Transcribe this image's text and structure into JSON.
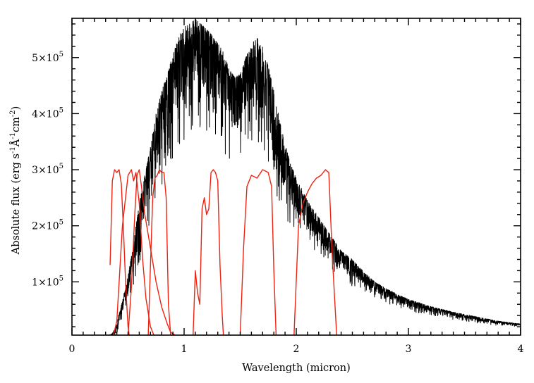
{
  "chart_data": {
    "type": "line",
    "xlabel": "Wavelength (micron)",
    "ylabel_parts": {
      "pre": "Absolute flux (erg s",
      "e1": "-1",
      "mid1": "Å",
      "e2": "-1",
      "mid2": "cm",
      "e3": "-2",
      "post": ")"
    },
    "xlim": [
      0,
      4
    ],
    "ylim": [
      5000,
      570000
    ],
    "x_ticks": [
      {
        "value": 0,
        "label": "0"
      },
      {
        "value": 1,
        "label": "1"
      },
      {
        "value": 2,
        "label": "2"
      },
      {
        "value": 3,
        "label": "3"
      },
      {
        "value": 4,
        "label": "4"
      }
    ],
    "y_ticks": [
      {
        "value": 100000,
        "mant": "1×10",
        "exp": "5"
      },
      {
        "value": 200000,
        "mant": "2×10",
        "exp": "5"
      },
      {
        "value": 300000,
        "mant": "3×10",
        "exp": "5"
      },
      {
        "value": 400000,
        "mant": "4×10",
        "exp": "5"
      },
      {
        "value": 500000,
        "mant": "5×10",
        "exp": "5"
      }
    ],
    "x_minor_step": 0.1,
    "y_minor_step": 20000,
    "spectrum_color": "#000000",
    "filter_color": "#ee2211",
    "spectrum_envelope": {
      "x": [
        0.33,
        0.36,
        0.38,
        0.4,
        0.43,
        0.46,
        0.5,
        0.55,
        0.6,
        0.65,
        0.7,
        0.75,
        0.8,
        0.85,
        0.9,
        0.95,
        1.0,
        1.05,
        1.1,
        1.15,
        1.2,
        1.25,
        1.3,
        1.35,
        1.4,
        1.45,
        1.5,
        1.55,
        1.6,
        1.65,
        1.7,
        1.75,
        1.8,
        1.85,
        1.9,
        1.95,
        2.0,
        2.05,
        2.1,
        2.15,
        2.2,
        2.25,
        2.3,
        2.35,
        2.4,
        2.5,
        2.6,
        2.7,
        2.8,
        2.9,
        3.0,
        3.2,
        3.4,
        3.6,
        3.8,
        4.0
      ],
      "upper": [
        5000,
        8000,
        15000,
        30000,
        50000,
        75000,
        110000,
        170000,
        240000,
        290000,
        340000,
        400000,
        440000,
        470000,
        505000,
        535000,
        555000,
        560000,
        570000,
        560000,
        550000,
        540000,
        525000,
        510000,
        480000,
        465000,
        470000,
        500000,
        525000,
        535000,
        520000,
        485000,
        440000,
        390000,
        345000,
        310000,
        285000,
        265000,
        245000,
        230000,
        215000,
        200000,
        185000,
        170000,
        155000,
        140000,
        118000,
        100000,
        88000,
        78000,
        69000,
        56000,
        46000,
        38000,
        30000,
        25000
      ],
      "lower": [
        0,
        0,
        0,
        5000,
        25000,
        40000,
        60000,
        90000,
        130000,
        170000,
        200000,
        230000,
        260000,
        300000,
        320000,
        340000,
        350000,
        360000,
        370000,
        370000,
        365000,
        355000,
        340000,
        330000,
        320000,
        320000,
        330000,
        340000,
        345000,
        340000,
        330000,
        305000,
        270000,
        240000,
        215000,
        200000,
        185000,
        175000,
        165000,
        155000,
        145000,
        135000,
        125000,
        115000,
        105000,
        92000,
        82000,
        72000,
        62000,
        55000,
        48000,
        40000,
        33000,
        27000,
        22000,
        20000
      ]
    },
    "series": [
      {
        "x": [
          0.34,
          0.36,
          0.38,
          0.4,
          0.42,
          0.44,
          0.46,
          0.48,
          0.5,
          0.51
        ],
        "y": [
          130000,
          280000,
          300000,
          295000,
          300000,
          275000,
          190000,
          90000,
          20000,
          0
        ]
      },
      {
        "x": [
          0.37,
          0.4,
          0.45,
          0.5,
          0.53,
          0.55,
          0.57,
          0.6,
          0.63,
          0.66,
          0.7,
          0.73
        ],
        "y": [
          0,
          30000,
          200000,
          290000,
          300000,
          280000,
          295000,
          240000,
          140000,
          70000,
          20000,
          0
        ]
      },
      {
        "x": [
          0.5,
          0.53,
          0.56,
          0.58,
          0.6,
          0.62,
          0.65,
          0.7,
          0.75,
          0.8,
          0.85,
          0.88,
          0.92
        ],
        "y": [
          0,
          90000,
          220000,
          290000,
          300000,
          270000,
          220000,
          160000,
          100000,
          55000,
          25000,
          10000,
          0
        ]
      },
      {
        "x": [
          0.68,
          0.7,
          0.72,
          0.74,
          0.76,
          0.78,
          0.8,
          0.82,
          0.84,
          0.86,
          0.88
        ],
        "y": [
          0,
          130000,
          250000,
          285000,
          290000,
          300000,
          295000,
          295000,
          250000,
          60000,
          0
        ]
      },
      {
        "x": [
          1.08,
          1.1,
          1.12,
          1.14,
          1.16,
          1.18,
          1.2,
          1.22,
          1.24,
          1.26,
          1.28,
          1.3,
          1.32,
          1.34,
          1.35
        ],
        "y": [
          0,
          120000,
          80000,
          60000,
          230000,
          250000,
          220000,
          230000,
          295000,
          300000,
          295000,
          280000,
          130000,
          40000,
          0
        ]
      },
      {
        "x": [
          1.5,
          1.53,
          1.56,
          1.6,
          1.65,
          1.7,
          1.75,
          1.78,
          1.8,
          1.82
        ],
        "y": [
          0,
          160000,
          270000,
          290000,
          285000,
          300000,
          295000,
          270000,
          120000,
          0
        ]
      },
      {
        "x": [
          1.98,
          2.02,
          2.06,
          2.1,
          2.14,
          2.18,
          2.22,
          2.26,
          2.29,
          2.32,
          2.36
        ],
        "y": [
          0,
          200000,
          240000,
          260000,
          275000,
          285000,
          290000,
          300000,
          295000,
          150000,
          0
        ]
      }
    ]
  }
}
